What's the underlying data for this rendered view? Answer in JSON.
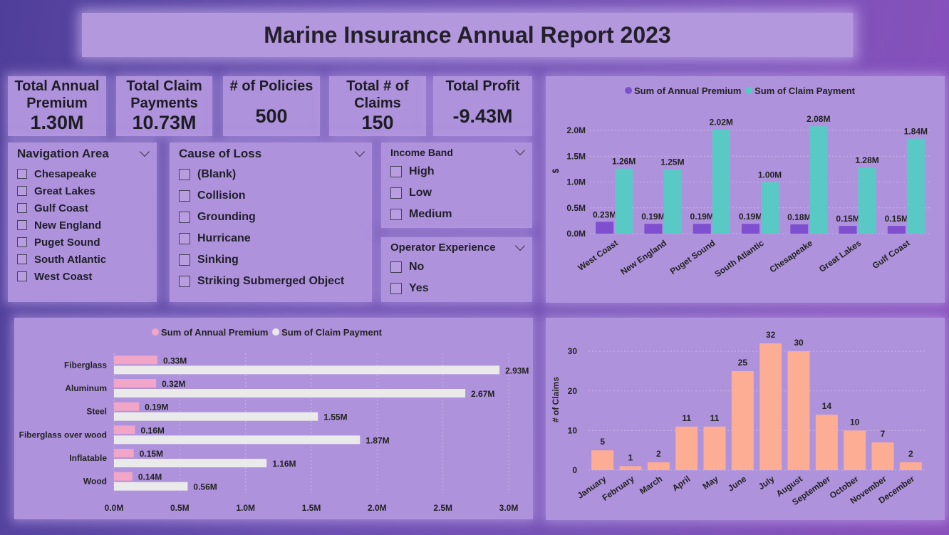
{
  "header": {
    "title": "Marine Insurance Annual Report 2023"
  },
  "kpis": [
    {
      "label_line1": "Total Annual",
      "label_line2": "Premium",
      "value": "1.30M"
    },
    {
      "label_line1": "Total Claim",
      "label_line2": "Payments",
      "value": "10.73M"
    },
    {
      "label_line1": "# of Policies",
      "label_line2": "",
      "value": "500"
    },
    {
      "label_line1": "Total # of",
      "label_line2": "Claims",
      "value": "150"
    },
    {
      "label_line1": "Total Profit",
      "label_line2": "",
      "value": "-9.43M"
    }
  ],
  "slicers": {
    "navigation_area": {
      "title": "Navigation Area",
      "options": [
        "Chesapeake",
        "Great Lakes",
        "Gulf Coast",
        "New England",
        "Puget Sound",
        "South Atlantic",
        "West Coast"
      ]
    },
    "cause_of_loss": {
      "title": "Cause of Loss",
      "options": [
        "(Blank)",
        "Collision",
        "Grounding",
        "Hurricane",
        "Sinking",
        "Striking Submerged Object"
      ]
    },
    "income_band": {
      "title": "Income Band",
      "options": [
        "High",
        "Low",
        "Medium"
      ]
    },
    "operator_experience": {
      "title": "Operator Experience",
      "options": [
        "No",
        "Yes"
      ]
    }
  },
  "chart_data": [
    {
      "type": "bar",
      "orientation": "vertical",
      "categories": [
        "West Coast",
        "New England",
        "Puget Sound",
        "South Atlantic",
        "Chesapeake",
        "Great Lakes",
        "Gulf Coast"
      ],
      "series": [
        {
          "name": "Sum of Annual Premium",
          "color": "#7e4fce",
          "values": [
            0.23,
            0.19,
            0.19,
            0.19,
            0.18,
            0.15,
            0.15
          ],
          "labels": [
            "0.23M",
            "0.19M",
            "0.19M",
            "0.19M",
            "0.18M",
            "0.15M",
            "0.15M"
          ]
        },
        {
          "name": "Sum of Claim Payment",
          "color": "#59c9c6",
          "values": [
            1.26,
            1.25,
            2.02,
            1.0,
            2.08,
            1.28,
            1.84
          ],
          "labels": [
            "1.26M",
            "1.25M",
            "2.02M",
            "1.00M",
            "2.08M",
            "1.28M",
            "1.84M"
          ]
        }
      ],
      "ylabel": "$",
      "yticks": [
        "0.0M",
        "0.5M",
        "1.0M",
        "1.5M",
        "2.0M"
      ],
      "ylim": [
        0,
        2.0
      ],
      "legend": "top"
    },
    {
      "type": "bar",
      "orientation": "horizontal",
      "categories": [
        "Fiberglass",
        "Aluminum",
        "Steel",
        "Fiberglass over wood",
        "Inflatable",
        "Wood"
      ],
      "series": [
        {
          "name": "Sum of Annual Premium",
          "color": "#f1a6c8",
          "values": [
            0.33,
            0.32,
            0.19,
            0.16,
            0.15,
            0.14
          ],
          "labels": [
            "0.33M",
            "0.32M",
            "0.19M",
            "0.16M",
            "0.15M",
            "0.14M"
          ]
        },
        {
          "name": "Sum of Claim Payment",
          "color": "#eaeaea",
          "values": [
            2.93,
            2.67,
            1.55,
            1.87,
            1.16,
            0.56
          ],
          "labels": [
            "2.93M",
            "2.67M",
            "1.55M",
            "1.87M",
            "1.16M",
            "0.56M"
          ]
        }
      ],
      "xticks": [
        "0.0M",
        "0.5M",
        "1.0M",
        "1.5M",
        "2.0M",
        "2.5M",
        "3.0M"
      ],
      "xlim": [
        0,
        3.0
      ],
      "legend": "top"
    },
    {
      "type": "bar",
      "orientation": "vertical",
      "categories": [
        "January",
        "February",
        "March",
        "April",
        "May",
        "June",
        "July",
        "August",
        "September",
        "October",
        "November",
        "December"
      ],
      "series": [
        {
          "color": "#fcad93",
          "values": [
            5,
            1,
            2,
            11,
            11,
            25,
            32,
            30,
            14,
            10,
            7,
            2
          ]
        }
      ],
      "ylabel": "# of Claims",
      "yticks": [
        "0",
        "10",
        "20",
        "30"
      ],
      "ylim": [
        0,
        32
      ]
    }
  ]
}
